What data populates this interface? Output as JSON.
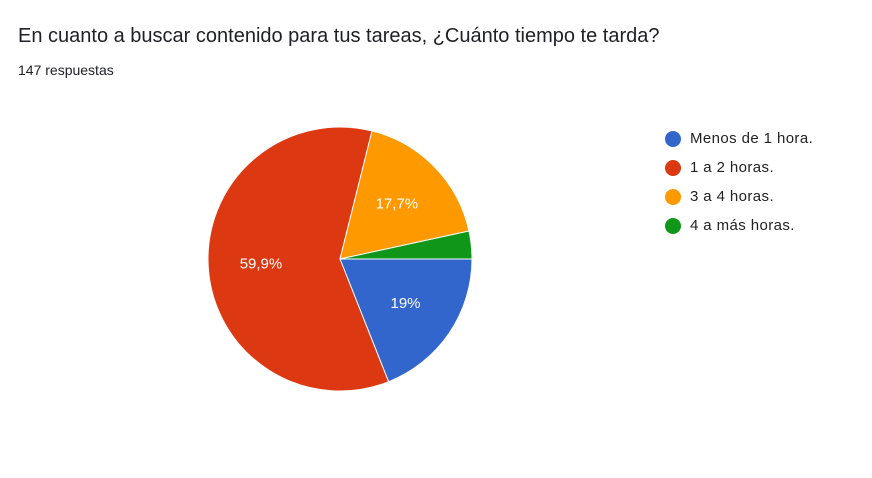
{
  "header": {
    "title": "En cuanto a buscar contenido para tus tareas, ¿Cuánto tiempo te tarda?",
    "responses": "147 respuestas"
  },
  "chart_data": {
    "type": "pie",
    "title": "En cuanto a buscar contenido para tus tareas, ¿Cuánto tiempo te tarda?",
    "slices": [
      {
        "label": "Menos de 1 hora.",
        "percent": 19.0,
        "display": "19%",
        "color": "#3366cc"
      },
      {
        "label": "1 a 2 horas.",
        "percent": 59.9,
        "display": "59,9%",
        "color": "#dc3912"
      },
      {
        "label": "3 a 4 horas.",
        "percent": 17.7,
        "display": "17,7%",
        "color": "#ff9900"
      },
      {
        "label": "4 a más horas.",
        "percent": 3.4,
        "display": "",
        "color": "#109618"
      }
    ],
    "legend_position": "right",
    "label_color": "#ffffff"
  }
}
